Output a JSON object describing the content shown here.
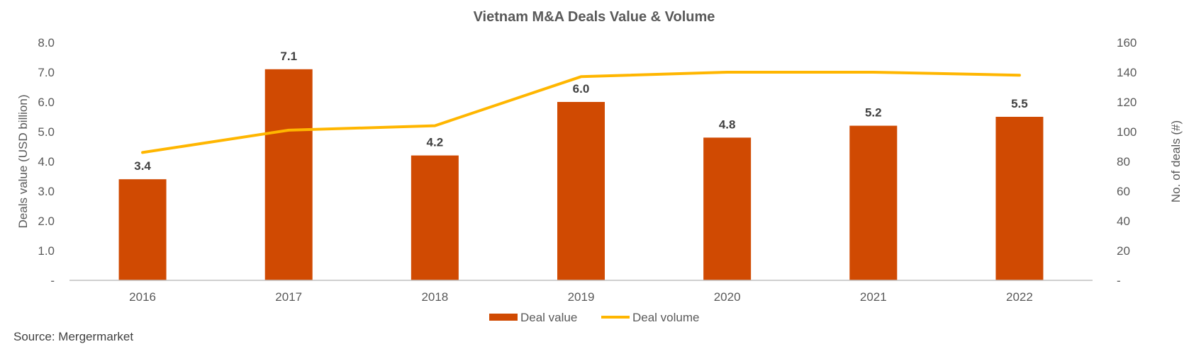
{
  "chart_data": {
    "type": "bar+line",
    "title": "Vietnam M&A Deals Value & Volume",
    "categories": [
      "2016",
      "2017",
      "2018",
      "2019",
      "2020",
      "2021",
      "2022"
    ],
    "series": [
      {
        "name": "Deal value",
        "type": "bar",
        "axis": "left",
        "color": "#D04A02",
        "values": [
          3.4,
          7.1,
          4.2,
          6.0,
          4.8,
          5.2,
          5.5
        ],
        "labels": [
          "3.4",
          "7.1",
          "4.2",
          "6.0",
          "4.8",
          "5.2",
          "5.5"
        ]
      },
      {
        "name": "Deal volume",
        "type": "line",
        "axis": "right",
        "color": "#FFB600",
        "values": [
          86,
          101,
          104,
          137,
          140,
          140,
          138
        ]
      }
    ],
    "y_left": {
      "label": "Deals value (USD billion)",
      "min": 0,
      "max": 8,
      "ticks": [
        "-",
        "1.0",
        "2.0",
        "3.0",
        "4.0",
        "5.0",
        "6.0",
        "7.0",
        "8.0"
      ]
    },
    "y_right": {
      "label": "No. of deals (#)",
      "min": 0,
      "max": 160,
      "ticks": [
        "-",
        "20",
        "40",
        "60",
        "80",
        "100",
        "120",
        "140",
        "160"
      ]
    },
    "grid": false,
    "legend": "bottom"
  },
  "source": "Source: Mergermarket"
}
